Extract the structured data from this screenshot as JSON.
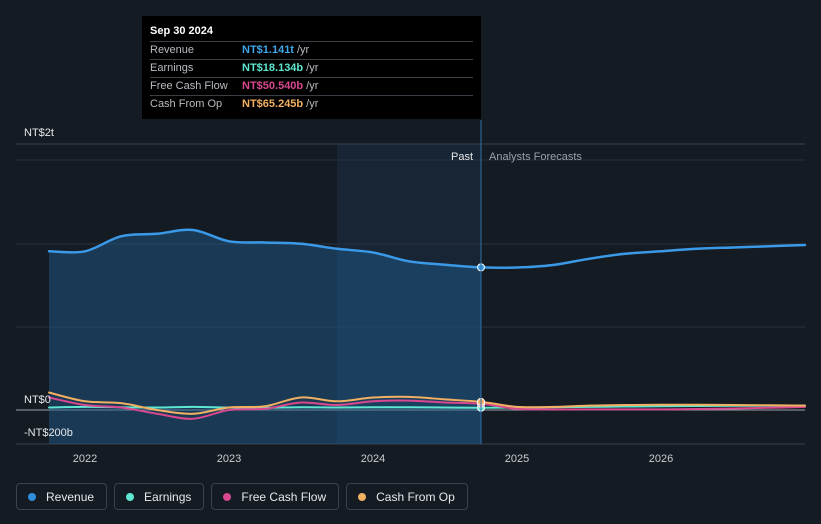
{
  "tooltip": {
    "date": "Sep 30 2024",
    "rows": [
      {
        "label": "Revenue",
        "value": "NT$1.141t",
        "unit": "/yr",
        "color": "#3fa8ec"
      },
      {
        "label": "Earnings",
        "value": "NT$18.134b",
        "unit": "/yr",
        "color": "#5ee8d2"
      },
      {
        "label": "Free Cash Flow",
        "value": "NT$50.540b",
        "unit": "/yr",
        "color": "#d9488f"
      },
      {
        "label": "Cash From Op",
        "value": "NT$65.245b",
        "unit": "/yr",
        "color": "#f1b062"
      }
    ]
  },
  "legend": [
    {
      "label": "Revenue",
      "color": "#2e8fdd"
    },
    {
      "label": "Earnings",
      "color": "#5ee8d2"
    },
    {
      "label": "Free Cash Flow",
      "color": "#d9488f"
    },
    {
      "label": "Cash From Op",
      "color": "#f1b062"
    }
  ],
  "chart_data": {
    "type": "line",
    "y_axis_labels": [
      "NT$2t",
      "NT$0",
      "-NT$200b"
    ],
    "x_ticks": [
      "2022",
      "2023",
      "2024",
      "2025",
      "2026"
    ],
    "past_label": "Past",
    "forecast_label": "Analysts Forecasts",
    "ylim_billions": [
      -200,
      2000
    ],
    "divider_date": 2024.75,
    "series": [
      {
        "name": "Revenue",
        "color": "#3b9ae8",
        "points": [
          [
            2021.75,
            1270
          ],
          [
            2022.0,
            1270
          ],
          [
            2022.25,
            1390
          ],
          [
            2022.5,
            1410
          ],
          [
            2022.75,
            1440
          ],
          [
            2023.0,
            1350
          ],
          [
            2023.25,
            1340
          ],
          [
            2023.5,
            1330
          ],
          [
            2023.75,
            1290
          ],
          [
            2024.0,
            1260
          ],
          [
            2024.25,
            1190
          ],
          [
            2024.5,
            1162
          ],
          [
            2024.75,
            1141
          ],
          [
            2025.0,
            1140
          ],
          [
            2025.25,
            1160
          ],
          [
            2025.5,
            1210
          ],
          [
            2025.75,
            1250
          ],
          [
            2026.0,
            1270
          ],
          [
            2026.25,
            1290
          ],
          [
            2026.5,
            1300
          ],
          [
            2026.75,
            1310
          ],
          [
            2027.0,
            1320
          ]
        ]
      },
      {
        "name": "Earnings",
        "color": "#5ee8d2",
        "points": [
          [
            2021.75,
            20
          ],
          [
            2022.0,
            25
          ],
          [
            2022.25,
            22
          ],
          [
            2022.5,
            20
          ],
          [
            2022.75,
            25
          ],
          [
            2023.0,
            20
          ],
          [
            2023.25,
            18
          ],
          [
            2023.5,
            22
          ],
          [
            2023.75,
            20
          ],
          [
            2024.0,
            22
          ],
          [
            2024.25,
            22
          ],
          [
            2024.5,
            20
          ],
          [
            2024.75,
            18
          ],
          [
            2025.0,
            20
          ],
          [
            2025.25,
            22
          ],
          [
            2025.5,
            25
          ],
          [
            2025.75,
            28
          ],
          [
            2026.0,
            30
          ],
          [
            2026.25,
            32
          ],
          [
            2026.5,
            34
          ],
          [
            2026.75,
            35
          ],
          [
            2027.0,
            36
          ]
        ]
      },
      {
        "name": "Free Cash Flow",
        "color": "#d9488f",
        "points": [
          [
            2021.75,
            100
          ],
          [
            2022.0,
            40
          ],
          [
            2022.25,
            20
          ],
          [
            2022.5,
            -30
          ],
          [
            2022.75,
            -70
          ],
          [
            2023.0,
            0
          ],
          [
            2023.25,
            10
          ],
          [
            2023.5,
            60
          ],
          [
            2023.75,
            40
          ],
          [
            2024.0,
            70
          ],
          [
            2024.25,
            75
          ],
          [
            2024.5,
            60
          ],
          [
            2024.75,
            50
          ],
          [
            2025.0,
            10
          ],
          [
            2025.25,
            5
          ],
          [
            2025.5,
            5
          ],
          [
            2025.75,
            5
          ],
          [
            2026.0,
            5
          ],
          [
            2026.25,
            8
          ],
          [
            2026.5,
            12
          ],
          [
            2026.75,
            18
          ],
          [
            2027.0,
            25
          ]
        ]
      },
      {
        "name": "Cash From Op",
        "color": "#f1b062",
        "points": [
          [
            2021.75,
            140
          ],
          [
            2022.0,
            70
          ],
          [
            2022.25,
            55
          ],
          [
            2022.5,
            0
          ],
          [
            2022.75,
            -30
          ],
          [
            2023.0,
            20
          ],
          [
            2023.25,
            30
          ],
          [
            2023.5,
            100
          ],
          [
            2023.75,
            70
          ],
          [
            2024.0,
            100
          ],
          [
            2024.25,
            105
          ],
          [
            2024.5,
            85
          ],
          [
            2024.75,
            65
          ],
          [
            2025.0,
            25
          ],
          [
            2025.25,
            25
          ],
          [
            2025.5,
            35
          ],
          [
            2025.75,
            40
          ],
          [
            2026.0,
            42
          ],
          [
            2026.25,
            42
          ],
          [
            2026.5,
            40
          ],
          [
            2026.75,
            38
          ],
          [
            2027.0,
            35
          ]
        ]
      }
    ]
  }
}
